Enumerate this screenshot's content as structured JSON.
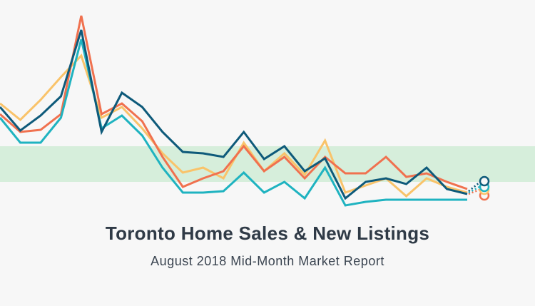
{
  "chart_data": {
    "type": "line",
    "title": "Toronto Home Sales & New Listings",
    "subtitle": "August 2018 Mid-Month Market Report",
    "ylim": [
      0,
      300
    ],
    "series": [
      {
        "color": "#f9c36a",
        "values": [
          155,
          132,
          160,
          192,
          222,
          135,
          150,
          120,
          85,
          58,
          65,
          50,
          100,
          60,
          85,
          55,
          103,
          30,
          40,
          50,
          25,
          50,
          38,
          30
        ]
      },
      {
        "color": "#f0714f",
        "values": [
          140,
          115,
          118,
          140,
          278,
          140,
          155,
          130,
          80,
          38,
          50,
          60,
          95,
          60,
          80,
          50,
          80,
          57,
          57,
          80,
          52,
          57,
          45,
          35
        ]
      },
      {
        "color": "#1fb3c0",
        "values": [
          135,
          100,
          100,
          135,
          245,
          120,
          138,
          110,
          65,
          30,
          30,
          32,
          58,
          30,
          45,
          22,
          65,
          12,
          17,
          20,
          20,
          20,
          20,
          20
        ]
      },
      {
        "color": "#0e5a7a",
        "values": [
          150,
          117,
          138,
          165,
          258,
          115,
          170,
          150,
          115,
          87,
          85,
          80,
          115,
          77,
          95,
          60,
          78,
          22,
          45,
          50,
          42,
          65,
          35,
          28
        ]
      }
    ]
  }
}
